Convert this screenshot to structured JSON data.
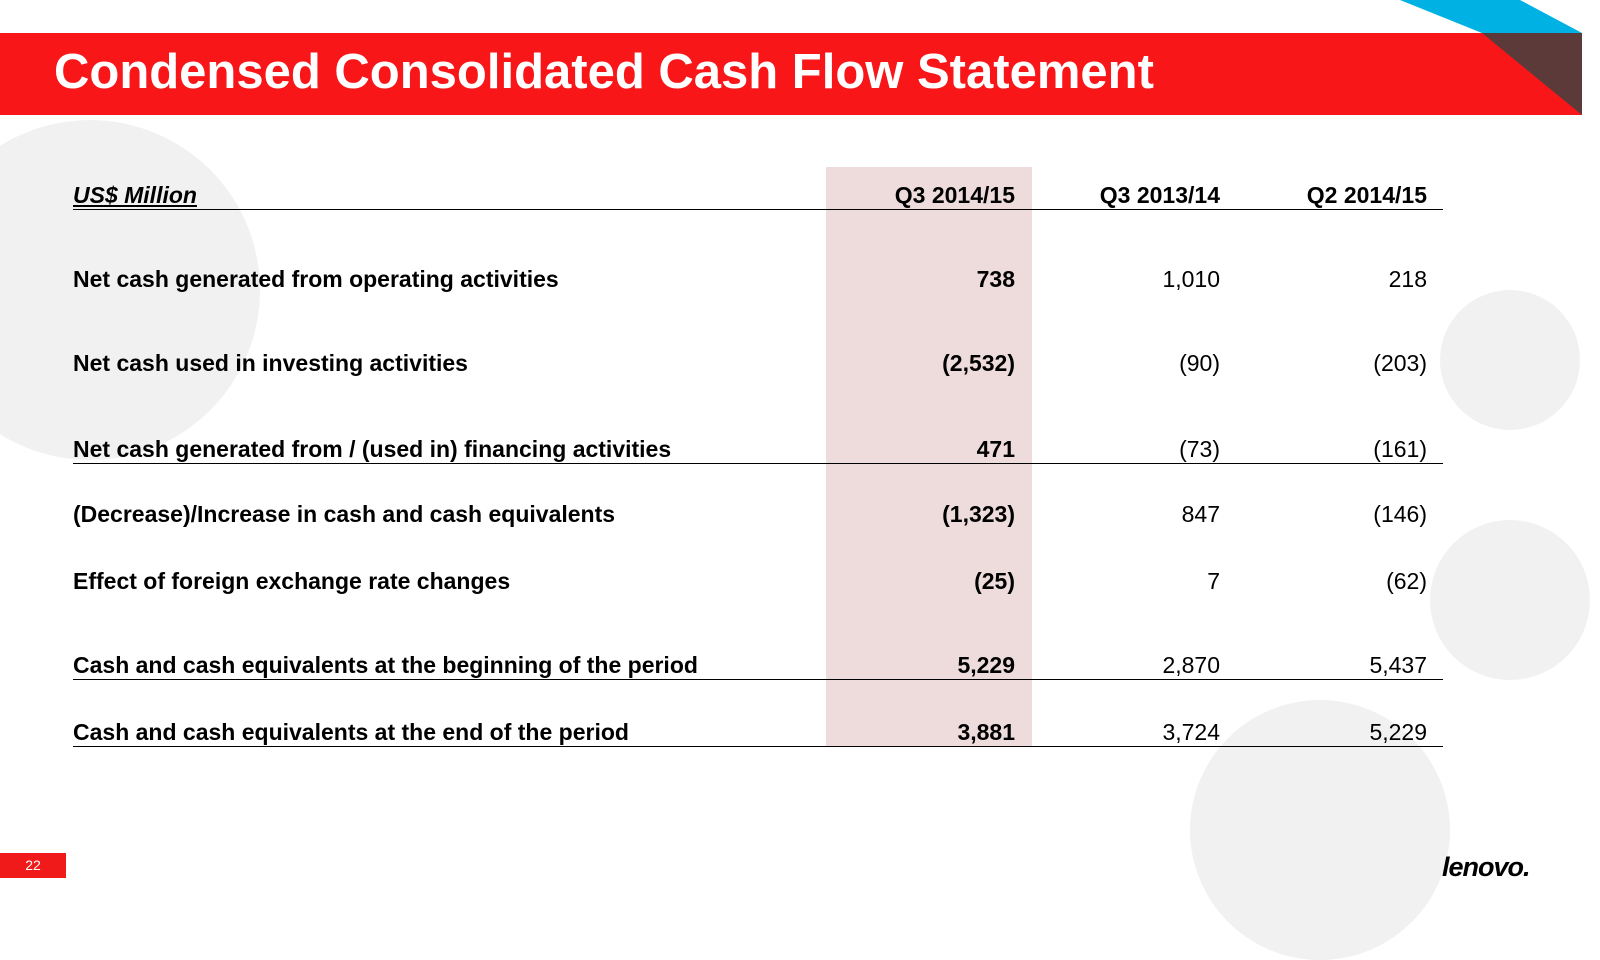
{
  "title": "Condensed Consolidated Cash Flow Statement",
  "table": {
    "header": {
      "label": "US$ Million",
      "cols": [
        "Q3 2014/15",
        "Q3 2013/14",
        "Q2 2014/15"
      ]
    },
    "rows": [
      {
        "label": "Net cash generated from operating activities",
        "values": [
          "738",
          "1,010",
          "218"
        ]
      },
      {
        "label": "Net cash used in investing activities",
        "values": [
          "(2,532)",
          "(90)",
          "(203)"
        ]
      },
      {
        "label": "Net cash generated from / (used in) financing activities",
        "values": [
          "471",
          "(73)",
          "(161)"
        ]
      },
      {
        "label": "(Decrease)/Increase in cash and cash equivalents",
        "values": [
          "(1,323)",
          "847",
          "(146)"
        ]
      },
      {
        "label": "Effect of foreign exchange rate changes",
        "values": [
          "(25)",
          "7",
          "(62)"
        ]
      },
      {
        "label": "Cash and cash equivalents at the beginning of the period",
        "values": [
          "5,229",
          "2,870",
          "5,437"
        ]
      },
      {
        "label": "Cash and cash equivalents at the end of the period",
        "values": [
          "3,881",
          "3,724",
          "5,229"
        ]
      }
    ]
  },
  "page_number": "22",
  "logo": "lenovo.",
  "colors": {
    "brand_red": "#f81618",
    "accent_blue": "#00b2e3",
    "accent_brown": "#5c3a3a",
    "highlight": "#eedcdc"
  }
}
